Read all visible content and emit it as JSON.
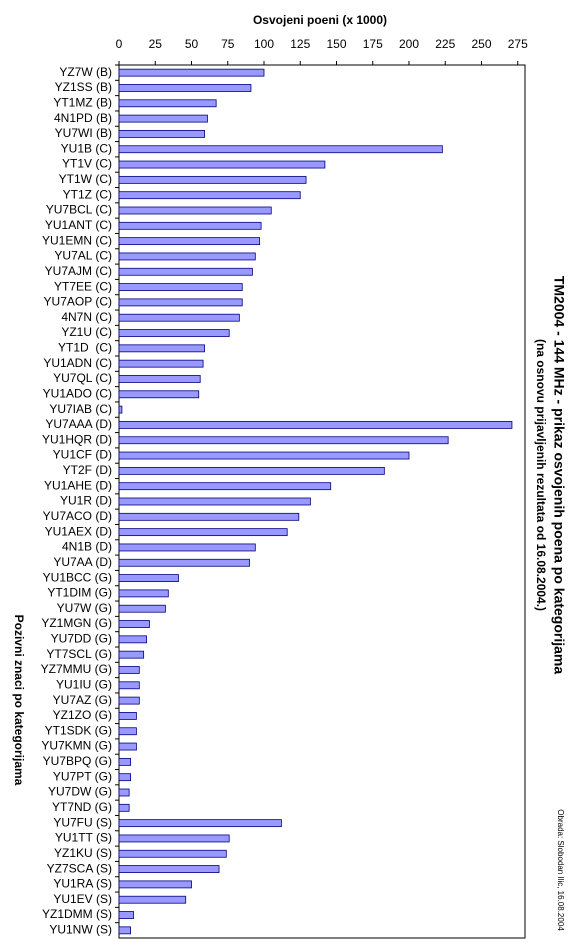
{
  "chart_data": {
    "type": "bar",
    "orientation": "horizontal",
    "title": "TM2004 - 144 MHz - prikaz osvojenih poena po kategorijama",
    "subtitle": "(na osnovu prijavljenih rezultata od 16.08.2004.)",
    "x_label": "Osvojeni poeni (x 1000)",
    "y_label": "Pozivni znaci po kategorijama",
    "note": "Obrada: Slobodan Ilic, 16.08.2004",
    "color": "#9999ff",
    "xlim": [
      0,
      280
    ],
    "xticks": [
      0,
      25,
      50,
      75,
      100,
      125,
      150,
      175,
      200,
      225,
      250,
      275
    ],
    "grid": false,
    "categories": [
      "YZ7W (B)",
      "YZ1SS (B)",
      "YT1MZ (B)",
      "4N1PD (B)",
      "YU7WI (B)",
      "YU1B (C)",
      "YT1V (C)",
      "YT1W (C)",
      "YT1Z (C)",
      "YU7BCL (C)",
      "YU1ANT (C)",
      "YU1EMN (C)",
      "YU7AL (C)",
      "YU7AJM (C)",
      "YT7EE (C)",
      "YU7AOP (C)",
      "4N7N (C)",
      "YZ1U (C)",
      "YT1D  (C)",
      "YU1ADN (C)",
      "YU7QL (C)",
      "YU1ADO (C)",
      "YU7IAB (C)",
      "YU7AAA (D)",
      "YU1HQR (D)",
      "YU1CF (D)",
      "YT2F (D)",
      "YU1AHE (D)",
      "YU1R (D)",
      "YU7ACO (D)",
      "YU1AEX (D)",
      "4N1B (D)",
      "YU7AA (D)",
      "YU1BCC (G)",
      "YT1DIM (G)",
      "YU7W (G)",
      "YZ1MGN (G)",
      "YU7DD (G)",
      "YT7SCL (G)",
      "YZ7MMU (G)",
      "YU1IU (G)",
      "YU7AZ (G)",
      "YZ1ZO (G)",
      "YT1SDK (G)",
      "YU7KMN (G)",
      "YU7BPQ (G)",
      "YU7PT (G)",
      "YU7DW (G)",
      "YT7ND (G)",
      "YU7FU (S)",
      "YU1TT (S)",
      "YZ1KU (S)",
      "YZ7SCA (S)",
      "YU1RA (S)",
      "YU1EV (S)",
      "YZ1DMM (S)",
      "YU1NW (S)"
    ],
    "values": [
      100,
      91,
      67,
      61,
      59,
      223,
      142,
      129,
      125,
      105,
      98,
      97,
      94,
      92,
      85,
      85,
      83,
      76,
      59,
      58,
      56,
      55,
      2,
      271,
      227,
      200,
      183,
      146,
      132,
      124,
      116,
      94,
      90,
      41,
      34,
      32,
      21,
      19,
      17,
      14,
      14,
      14,
      12,
      12,
      12,
      8,
      8,
      7,
      7,
      112,
      76,
      74,
      69,
      50,
      46,
      10,
      8
    ]
  }
}
